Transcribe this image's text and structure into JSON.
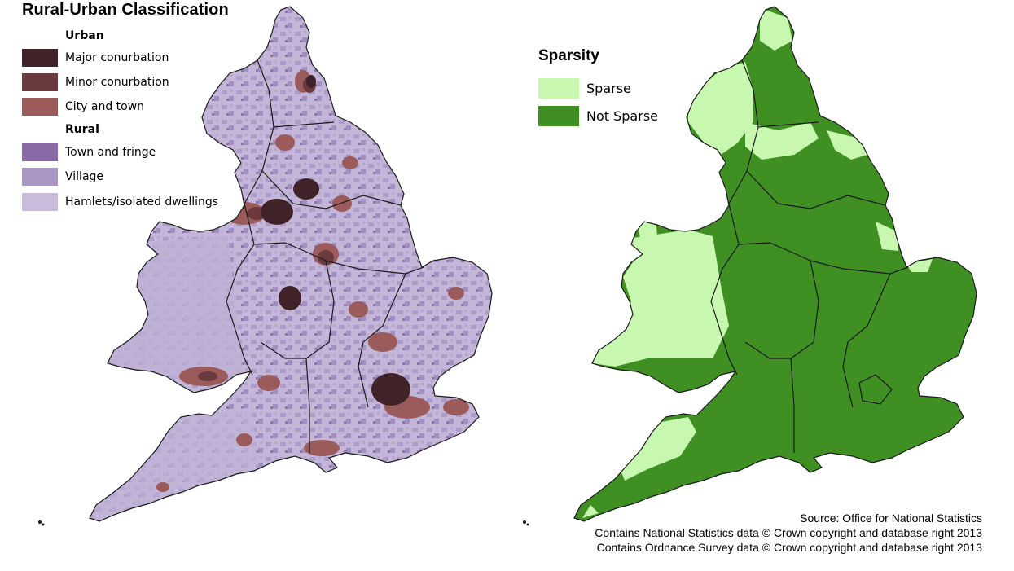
{
  "left_map": {
    "title": "Rural-Urban Classification",
    "legend": {
      "urban_heading": "Urban",
      "rural_heading": "Rural",
      "urban_items": [
        {
          "label": "Major conurbation",
          "color": "#3f2328"
        },
        {
          "label": "Minor conurbation",
          "color": "#6b3a3f"
        },
        {
          "label": "City and town",
          "color": "#9a5b5a"
        }
      ],
      "rural_items": [
        {
          "label": "Town and fringe",
          "color": "#8a6aa6"
        },
        {
          "label": "Village",
          "color": "#a996c4"
        },
        {
          "label": "Hamlets/isolated dwellings",
          "color": "#c8bcda"
        }
      ]
    }
  },
  "right_map": {
    "title": "Sparsity",
    "legend": [
      {
        "label": "Sparse",
        "color": "#c8f7b0"
      },
      {
        "label": "Not Sparse",
        "color": "#3f8f22"
      }
    ]
  },
  "source": {
    "line1": "Source: Office for National Statistics",
    "line2": "Contains National Statistics data © Crown copyright and database right 2013",
    "line3": "Contains Ordnance Survey data © Crown copyright and database right 2013"
  },
  "colors": {
    "region_border": "#1a1a1a",
    "rural_base": "#b9abd2"
  }
}
